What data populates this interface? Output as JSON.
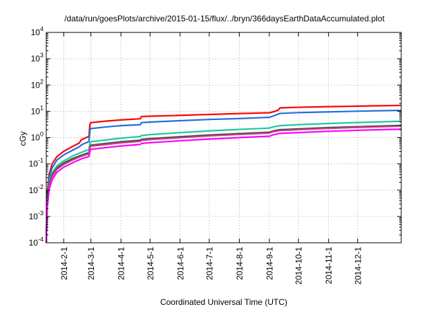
{
  "chart_data": {
    "type": "line",
    "title": "/data/run/goesPlots/archive/2015-01-15/flux/../bryn/366daysEarthDataAccumulated.plot",
    "xlabel": "Coordinated Universal Time (UTC)",
    "ylabel": "cGy",
    "y_scale": "log",
    "ylim": [
      0.0001,
      10000
    ],
    "xlim": [
      "2014-01-14",
      "2015-01-15"
    ],
    "grid": true,
    "y_ticks": [
      {
        "value": 0.0001,
        "base": "10",
        "exp": "-4"
      },
      {
        "value": 0.001,
        "base": "10",
        "exp": "-3"
      },
      {
        "value": 0.01,
        "base": "10",
        "exp": "-2"
      },
      {
        "value": 0.1,
        "base": "10",
        "exp": "-1"
      },
      {
        "value": 1,
        "base": "10",
        "exp": "0"
      },
      {
        "value": 10,
        "base": "10",
        "exp": "1"
      },
      {
        "value": 100,
        "base": "10",
        "exp": "2"
      },
      {
        "value": 1000,
        "base": "10",
        "exp": "3"
      },
      {
        "value": 10000,
        "base": "10",
        "exp": "4"
      }
    ],
    "x_ticks": [
      {
        "date": "2014-02-01",
        "label": "2014-2-1"
      },
      {
        "date": "2014-03-01",
        "label": "2014-3-1"
      },
      {
        "date": "2014-04-01",
        "label": "2014-4-1"
      },
      {
        "date": "2014-05-01",
        "label": "2014-5-1"
      },
      {
        "date": "2014-06-01",
        "label": "2014-6-1"
      },
      {
        "date": "2014-07-01",
        "label": "2014-7-1"
      },
      {
        "date": "2014-08-01",
        "label": "2014-8-1"
      },
      {
        "date": "2014-09-01",
        "label": "2014-9-1"
      },
      {
        "date": "2014-10-01",
        "label": "2014-10-1"
      },
      {
        "date": "2014-11-01",
        "label": "2014-11-1"
      },
      {
        "date": "2014-12-01",
        "label": "2014-12-1"
      }
    ],
    "series": [
      {
        "color": "#ff0000",
        "points": [
          [
            "2014-01-14",
            0.0001
          ],
          [
            "2014-01-15",
            0.008
          ],
          [
            "2014-01-17",
            0.04
          ],
          [
            "2014-01-20",
            0.1
          ],
          [
            "2014-01-25",
            0.19
          ],
          [
            "2014-02-01",
            0.3
          ],
          [
            "2014-02-10",
            0.46
          ],
          [
            "2014-02-17",
            0.62
          ],
          [
            "2014-02-19",
            0.82
          ],
          [
            "2014-02-24",
            1.0
          ],
          [
            "2014-02-27",
            1.1
          ],
          [
            "2014-02-28",
            3.3
          ],
          [
            "2014-03-01",
            3.7
          ],
          [
            "2014-03-15",
            4.2
          ],
          [
            "2014-04-01",
            4.7
          ],
          [
            "2014-04-21",
            5.2
          ],
          [
            "2014-04-22",
            6.3
          ],
          [
            "2014-05-01",
            6.5
          ],
          [
            "2014-06-01",
            7.0
          ],
          [
            "2014-07-01",
            7.6
          ],
          [
            "2014-08-01",
            8.2
          ],
          [
            "2014-09-01",
            8.8
          ],
          [
            "2014-09-05",
            9.5
          ],
          [
            "2014-09-10",
            11.0
          ],
          [
            "2014-09-12",
            13.5
          ],
          [
            "2014-10-01",
            14.2
          ],
          [
            "2014-11-01",
            15.0
          ],
          [
            "2014-12-01",
            15.7
          ],
          [
            "2015-01-15",
            16.8
          ]
        ]
      },
      {
        "color": "#1e6fe0",
        "points": [
          [
            "2014-01-14",
            0.0001
          ],
          [
            "2014-01-15",
            0.006
          ],
          [
            "2014-01-17",
            0.03
          ],
          [
            "2014-01-20",
            0.07
          ],
          [
            "2014-01-25",
            0.14
          ],
          [
            "2014-02-01",
            0.22
          ],
          [
            "2014-02-10",
            0.33
          ],
          [
            "2014-02-17",
            0.45
          ],
          [
            "2014-02-20",
            0.55
          ],
          [
            "2014-02-27",
            0.7
          ],
          [
            "2014-02-28",
            1.9
          ],
          [
            "2014-03-01",
            2.2
          ],
          [
            "2014-03-15",
            2.5
          ],
          [
            "2014-04-01",
            2.85
          ],
          [
            "2014-04-21",
            3.1
          ],
          [
            "2014-04-22",
            3.7
          ],
          [
            "2014-05-01",
            3.9
          ],
          [
            "2014-06-01",
            4.4
          ],
          [
            "2014-07-01",
            4.9
          ],
          [
            "2014-08-01",
            5.3
          ],
          [
            "2014-09-01",
            5.9
          ],
          [
            "2014-09-05",
            6.6
          ],
          [
            "2014-09-12",
            8.3
          ],
          [
            "2014-10-01",
            8.9
          ],
          [
            "2014-11-01",
            9.5
          ],
          [
            "2014-12-01",
            10.1
          ],
          [
            "2015-01-15",
            10.9
          ]
        ]
      },
      {
        "color": "#20c8a0",
        "points": [
          [
            "2014-01-14",
            0.0001
          ],
          [
            "2014-01-15",
            0.004
          ],
          [
            "2014-01-17",
            0.02
          ],
          [
            "2014-01-20",
            0.045
          ],
          [
            "2014-01-25",
            0.085
          ],
          [
            "2014-02-01",
            0.13
          ],
          [
            "2014-02-10",
            0.2
          ],
          [
            "2014-02-20",
            0.28
          ],
          [
            "2014-02-27",
            0.35
          ],
          [
            "2014-02-28",
            0.6
          ],
          [
            "2014-03-01",
            0.7
          ],
          [
            "2014-04-01",
            0.95
          ],
          [
            "2014-04-21",
            1.1
          ],
          [
            "2014-04-22",
            1.2
          ],
          [
            "2014-05-01",
            1.3
          ],
          [
            "2014-06-01",
            1.55
          ],
          [
            "2014-07-01",
            1.8
          ],
          [
            "2014-08-01",
            2.05
          ],
          [
            "2014-09-01",
            2.3
          ],
          [
            "2014-09-05",
            2.55
          ],
          [
            "2014-09-12",
            2.85
          ],
          [
            "2014-10-01",
            3.1
          ],
          [
            "2014-11-01",
            3.45
          ],
          [
            "2014-12-01",
            3.75
          ],
          [
            "2015-01-15",
            4.2
          ]
        ]
      },
      {
        "color": "#2e8b2e",
        "points": [
          [
            "2014-01-14",
            0.0001
          ],
          [
            "2014-01-15",
            0.0035
          ],
          [
            "2014-01-17",
            0.017
          ],
          [
            "2014-01-20",
            0.038
          ],
          [
            "2014-01-25",
            0.07
          ],
          [
            "2014-02-01",
            0.11
          ],
          [
            "2014-02-10",
            0.16
          ],
          [
            "2014-02-20",
            0.22
          ],
          [
            "2014-02-27",
            0.27
          ],
          [
            "2014-02-28",
            0.46
          ],
          [
            "2014-03-01",
            0.52
          ],
          [
            "2014-04-01",
            0.7
          ],
          [
            "2014-04-21",
            0.8
          ],
          [
            "2014-04-22",
            0.86
          ],
          [
            "2014-05-01",
            0.92
          ],
          [
            "2014-06-01",
            1.08
          ],
          [
            "2014-07-01",
            1.26
          ],
          [
            "2014-08-01",
            1.43
          ],
          [
            "2014-09-01",
            1.6
          ],
          [
            "2014-09-05",
            1.8
          ],
          [
            "2014-09-12",
            2.0
          ],
          [
            "2014-10-01",
            2.15
          ],
          [
            "2014-11-01",
            2.4
          ],
          [
            "2014-12-01",
            2.6
          ],
          [
            "2015-01-15",
            2.9
          ]
        ]
      },
      {
        "color": "#3a2a6a",
        "points": [
          [
            "2014-01-14",
            0.0001
          ],
          [
            "2014-01-15",
            0.0032
          ],
          [
            "2014-01-17",
            0.016
          ],
          [
            "2014-01-20",
            0.035
          ],
          [
            "2014-01-25",
            0.066
          ],
          [
            "2014-02-01",
            0.1
          ],
          [
            "2014-02-10",
            0.15
          ],
          [
            "2014-02-20",
            0.21
          ],
          [
            "2014-02-27",
            0.25
          ],
          [
            "2014-02-28",
            0.43
          ],
          [
            "2014-03-01",
            0.49
          ],
          [
            "2014-04-01",
            0.66
          ],
          [
            "2014-04-21",
            0.76
          ],
          [
            "2014-04-22",
            0.82
          ],
          [
            "2014-05-01",
            0.88
          ],
          [
            "2014-06-01",
            1.04
          ],
          [
            "2014-07-01",
            1.22
          ],
          [
            "2014-08-01",
            1.38
          ],
          [
            "2014-09-01",
            1.55
          ],
          [
            "2014-09-05",
            1.75
          ],
          [
            "2014-09-12",
            1.95
          ],
          [
            "2014-10-01",
            2.1
          ],
          [
            "2014-11-01",
            2.35
          ],
          [
            "2014-12-01",
            2.55
          ],
          [
            "2015-01-15",
            2.85
          ]
        ]
      },
      {
        "color": "#d04080",
        "points": [
          [
            "2014-01-14",
            0.0001
          ],
          [
            "2014-01-15",
            0.003
          ],
          [
            "2014-01-17",
            0.015
          ],
          [
            "2014-01-20",
            0.033
          ],
          [
            "2014-01-25",
            0.062
          ],
          [
            "2014-02-01",
            0.095
          ],
          [
            "2014-02-10",
            0.14
          ],
          [
            "2014-02-20",
            0.2
          ],
          [
            "2014-02-27",
            0.24
          ],
          [
            "2014-02-28",
            0.41
          ],
          [
            "2014-03-01",
            0.47
          ],
          [
            "2014-04-01",
            0.63
          ],
          [
            "2014-04-21",
            0.72
          ],
          [
            "2014-04-22",
            0.78
          ],
          [
            "2014-05-01",
            0.84
          ],
          [
            "2014-06-01",
            0.99
          ],
          [
            "2014-07-01",
            1.16
          ],
          [
            "2014-08-01",
            1.32
          ],
          [
            "2014-09-01",
            1.48
          ],
          [
            "2014-09-05",
            1.67
          ],
          [
            "2014-09-12",
            1.85
          ],
          [
            "2014-10-01",
            2.0
          ],
          [
            "2014-11-01",
            2.24
          ],
          [
            "2014-12-01",
            2.44
          ],
          [
            "2015-01-15",
            2.72
          ]
        ]
      },
      {
        "color": "#ff00ff",
        "points": [
          [
            "2014-01-14",
            0.0001
          ],
          [
            "2014-01-15",
            0.0022
          ],
          [
            "2014-01-17",
            0.011
          ],
          [
            "2014-01-20",
            0.025
          ],
          [
            "2014-01-25",
            0.048
          ],
          [
            "2014-02-01",
            0.075
          ],
          [
            "2014-02-10",
            0.11
          ],
          [
            "2014-02-20",
            0.16
          ],
          [
            "2014-02-27",
            0.19
          ],
          [
            "2014-02-28",
            0.31
          ],
          [
            "2014-03-01",
            0.36
          ],
          [
            "2014-04-01",
            0.48
          ],
          [
            "2014-04-21",
            0.55
          ],
          [
            "2014-04-22",
            0.6
          ],
          [
            "2014-05-01",
            0.64
          ],
          [
            "2014-06-01",
            0.76
          ],
          [
            "2014-07-01",
            0.88
          ],
          [
            "2014-08-01",
            1.0
          ],
          [
            "2014-09-01",
            1.13
          ],
          [
            "2014-09-05",
            1.28
          ],
          [
            "2014-09-12",
            1.45
          ],
          [
            "2014-10-01",
            1.55
          ],
          [
            "2014-11-01",
            1.74
          ],
          [
            "2014-12-01",
            1.9
          ],
          [
            "2015-01-15",
            2.1
          ]
        ]
      }
    ]
  }
}
